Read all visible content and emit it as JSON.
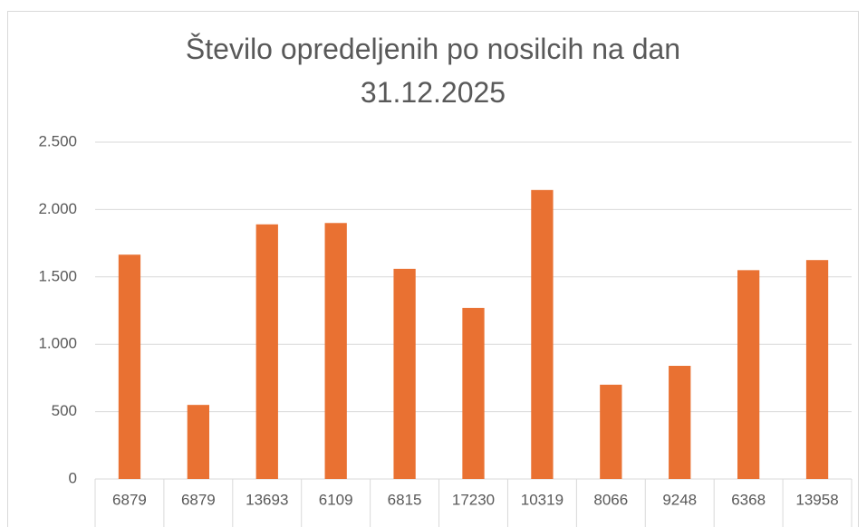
{
  "chart_data": {
    "type": "bar",
    "title": "Število opredeljenih po nosilcih na dan 31.12.2025",
    "categories": [
      "6879",
      "6879",
      "13693",
      "6109",
      "6815",
      "17230",
      "10319",
      "8066",
      "9248",
      "6368",
      "13958"
    ],
    "values": [
      1665,
      550,
      1890,
      1900,
      1560,
      1270,
      2145,
      700,
      840,
      1550,
      1625
    ],
    "color": "#e97132",
    "ylim": [
      0,
      2500
    ],
    "yticks": [
      0,
      500,
      {
        "value": 1000,
        "label": "1.000"
      },
      {
        "value": 1500,
        "label": "1.500"
      },
      {
        "value": 2000,
        "label": "2.000"
      },
      {
        "value": 2500,
        "label": "2.500"
      }
    ],
    "grid": true
  }
}
